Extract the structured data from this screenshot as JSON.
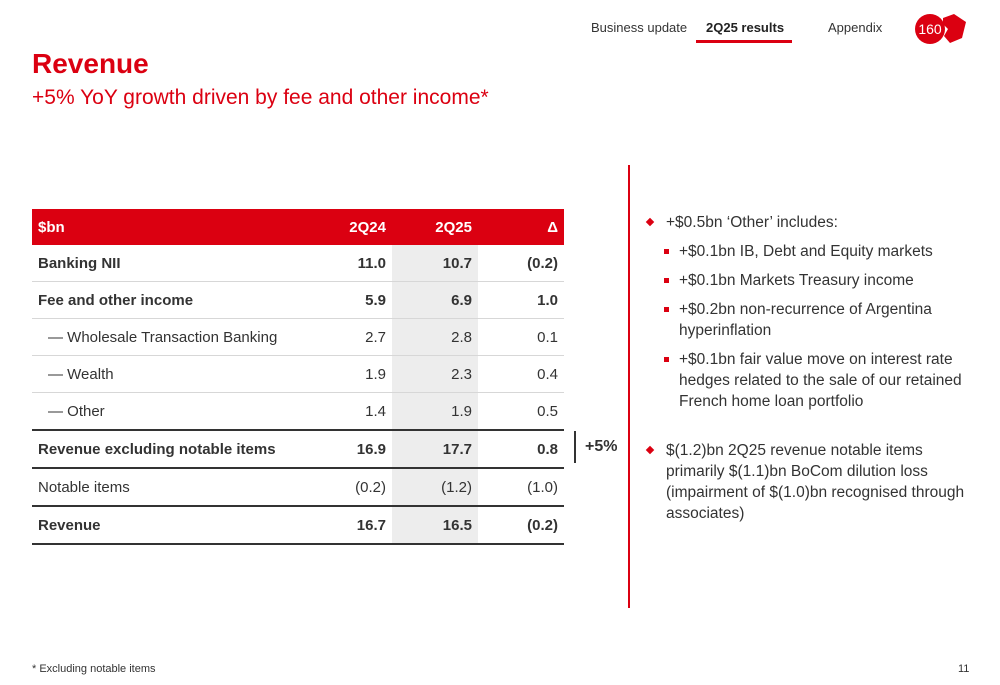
{
  "nav": {
    "items": [
      "Business update",
      "2Q25 results",
      "Appendix"
    ],
    "active": "2Q25 results",
    "logo_text": "160"
  },
  "title": "Revenue",
  "subtitle": "+5% YoY growth driven by fee and other income*",
  "table": {
    "headers": [
      "$bn",
      "2Q24",
      "2Q25",
      "Δ"
    ],
    "rows": [
      [
        "Banking NII",
        "11.0",
        "10.7",
        "(0.2)"
      ],
      [
        "Fee and other income",
        "5.9",
        "6.9",
        "1.0"
      ],
      [
        "— Wholesale Transaction Banking",
        "2.7",
        "2.8",
        "0.1"
      ],
      [
        "— Wealth",
        "1.9",
        "2.3",
        "0.4"
      ],
      [
        "— Other",
        "1.4",
        "1.9",
        "0.5"
      ],
      [
        "Revenue excluding notable items",
        "16.9",
        "17.7",
        "0.8"
      ],
      [
        "Notable items",
        "(0.2)",
        "(1.2)",
        "(1.0)"
      ],
      [
        "Revenue",
        "16.7",
        "16.5",
        "(0.2)"
      ]
    ],
    "growth_label": "+5%"
  },
  "bullets": {
    "b1": "+$0.5bn ‘Other’ includes:",
    "b1_sub": [
      "+$0.1bn IB, Debt and Equity markets",
      "+$0.1bn Markets Treasury income",
      "+$0.2bn non-recurrence of Argentina hyperinflation",
      "+$0.1bn fair value move on interest rate hedges related to the sale of our retained French home loan portfolio"
    ],
    "b2": "$(1.2)bn 2Q25 revenue notable items primarily $(1.1)bn BoCom dilution loss (impairment of $(1.0)bn recognised through associates)"
  },
  "colors": {
    "brand_red": "#db0011",
    "positive_teal": "#00847f",
    "highlight_grey": "#ededed"
  },
  "footnote": "* Excluding notable items",
  "page_number": "11"
}
